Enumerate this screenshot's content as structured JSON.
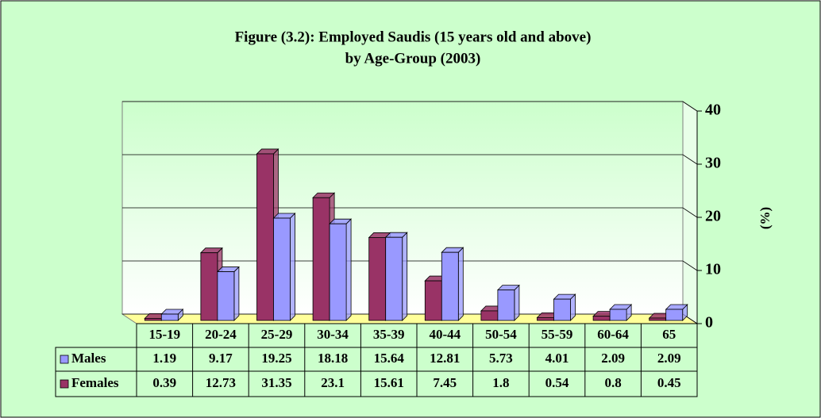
{
  "chart_data": {
    "type": "bar",
    "title": "Figure (3.2): Employed Saudis (15 years old and above)",
    "subtitle": "by Age-Group (2003)",
    "y_label": "(%)",
    "categories": [
      "15-19",
      "20-24",
      "25-29",
      "30-34",
      "35-39",
      "40-44",
      "50-54",
      "55-59",
      "60-64",
      "65"
    ],
    "series": [
      {
        "name": "Males",
        "color": "#9999ff",
        "values": [
          1.19,
          9.17,
          19.25,
          18.18,
          15.64,
          12.81,
          5.73,
          4.01,
          2.09,
          2.09
        ]
      },
      {
        "name": "Females",
        "color": "#993366",
        "values": [
          0.39,
          12.73,
          31.35,
          23.1,
          15.61,
          7.45,
          1.8,
          0.54,
          0.8,
          0.45
        ]
      }
    ],
    "ylim": [
      0,
      40
    ],
    "yticks": [
      0,
      10,
      20,
      30,
      40
    ],
    "grid": true
  }
}
